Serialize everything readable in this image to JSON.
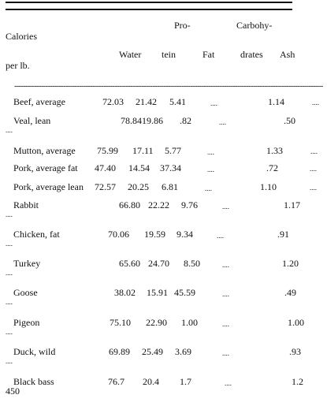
{
  "header": {
    "pro": "Pro-",
    "carbohy": "Carbohy-",
    "calories": "Calories",
    "water": "Water",
    "tein": "tein",
    "fat": "Fat",
    "drates": "drates",
    "ash": "Ash",
    "per_lb": "per lb."
  },
  "dashes": "----------------------------------------------------------------------------------------------------------------------------------------------------",
  "rows": [
    {
      "name": "Beef, average",
      "water": "72.03",
      "protein": "21.42",
      "fat": "5.41",
      "carb": "....",
      "ash": "1.14",
      "cal": "...."
    },
    {
      "name": "Veal, lean",
      "water": "78.84",
      "protein": "19.86",
      "fat": ".82",
      "carb": "....",
      "ash": ".50",
      "cal": "...."
    },
    {
      "name": "Mutton, average",
      "water": "75.99",
      "protein": "17.11",
      "fat": "5.77",
      "carb": "....",
      "ash": "1.33",
      "cal": "...."
    },
    {
      "name": "Pork, average fat",
      "water": "47.40",
      "protein": "14.54",
      "fat": "37.34",
      "carb": "....",
      "ash": ".72",
      "cal": "...."
    },
    {
      "name": "Pork, average lean",
      "water": "72.57",
      "protein": "20.25",
      "fat": "6.81",
      "carb": "....",
      "ash": "1.10",
      "cal": "...."
    },
    {
      "name": "Rabbit",
      "water": "66.80",
      "protein": "22.22",
      "fat": "9.76",
      "carb": "....",
      "ash": "1.17",
      "cal": "...."
    },
    {
      "name": "Chicken, fat",
      "water": "70.06",
      "protein": "19.59",
      "fat": "9.34",
      "carb": "....",
      "ash": ".91",
      "cal": "...."
    },
    {
      "name": "Turkey",
      "water": "65.60",
      "protein": "24.70",
      "fat": "8.50",
      "carb": "....",
      "ash": "1.20",
      "cal": "...."
    },
    {
      "name": "Goose",
      "water": "38.02",
      "protein": "15.91",
      "fat": "45.59",
      "carb": "....",
      "ash": ".49",
      "cal": "...."
    },
    {
      "name": "Pigeon",
      "water": "75.10",
      "protein": "22.90",
      "fat": "1.00",
      "carb": "....",
      "ash": "1.00",
      "cal": "...."
    },
    {
      "name": "Duck, wild",
      "water": "69.89",
      "protein": "25.49",
      "fat": "3.69",
      "carb": "....",
      "ash": ".93",
      "cal": "...."
    },
    {
      "name": "Black bass",
      "water": "76.7",
      "protein": "20.4",
      "fat": "1.7",
      "carb": "....",
      "ash": "1.2",
      "cal": "450"
    }
  ]
}
